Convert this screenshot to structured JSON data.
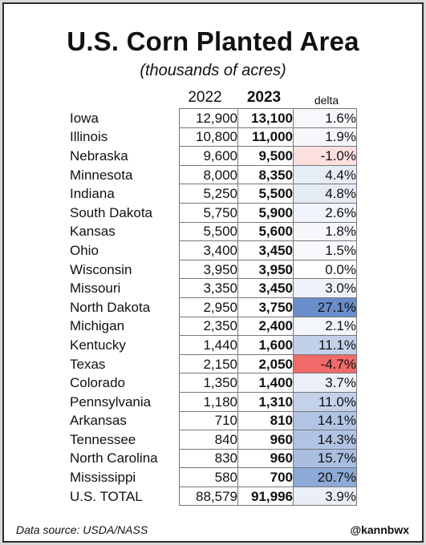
{
  "chart_data": {
    "type": "table",
    "title": "U.S. Corn Planted Area",
    "subtitle": "(thousands of acres)",
    "columns": [
      "2022",
      "2023",
      "delta"
    ],
    "rows": [
      {
        "state": "Iowa",
        "y2022": "12,900",
        "y2023": "13,100",
        "delta": "1.6%",
        "delta_value": 1.6
      },
      {
        "state": "Illinois",
        "y2022": "10,800",
        "y2023": "11,000",
        "delta": "1.9%",
        "delta_value": 1.9
      },
      {
        "state": "Nebraska",
        "y2022": "9,600",
        "y2023": "9,500",
        "delta": "-1.0%",
        "delta_value": -1.0
      },
      {
        "state": "Minnesota",
        "y2022": "8,000",
        "y2023": "8,350",
        "delta": "4.4%",
        "delta_value": 4.4
      },
      {
        "state": "Indiana",
        "y2022": "5,250",
        "y2023": "5,500",
        "delta": "4.8%",
        "delta_value": 4.8
      },
      {
        "state": "South Dakota",
        "y2022": "5,750",
        "y2023": "5,900",
        "delta": "2.6%",
        "delta_value": 2.6
      },
      {
        "state": "Kansas",
        "y2022": "5,500",
        "y2023": "5,600",
        "delta": "1.8%",
        "delta_value": 1.8
      },
      {
        "state": "Ohio",
        "y2022": "3,400",
        "y2023": "3,450",
        "delta": "1.5%",
        "delta_value": 1.5
      },
      {
        "state": "Wisconsin",
        "y2022": "3,950",
        "y2023": "3,950",
        "delta": "0.0%",
        "delta_value": 0.0
      },
      {
        "state": "Missouri",
        "y2022": "3,350",
        "y2023": "3,450",
        "delta": "3.0%",
        "delta_value": 3.0
      },
      {
        "state": "North Dakota",
        "y2022": "2,950",
        "y2023": "3,750",
        "delta": "27.1%",
        "delta_value": 27.1
      },
      {
        "state": "Michigan",
        "y2022": "2,350",
        "y2023": "2,400",
        "delta": "2.1%",
        "delta_value": 2.1
      },
      {
        "state": "Kentucky",
        "y2022": "1,440",
        "y2023": "1,600",
        "delta": "11.1%",
        "delta_value": 11.1
      },
      {
        "state": "Texas",
        "y2022": "2,150",
        "y2023": "2,050",
        "delta": "-4.7%",
        "delta_value": -4.7
      },
      {
        "state": "Colorado",
        "y2022": "1,350",
        "y2023": "1,400",
        "delta": "3.7%",
        "delta_value": 3.7
      },
      {
        "state": "Pennsylvania",
        "y2022": "1,180",
        "y2023": "1,310",
        "delta": "11.0%",
        "delta_value": 11.0
      },
      {
        "state": "Arkansas",
        "y2022": "710",
        "y2023": "810",
        "delta": "14.1%",
        "delta_value": 14.1
      },
      {
        "state": "Tennessee",
        "y2022": "840",
        "y2023": "960",
        "delta": "14.3%",
        "delta_value": 14.3
      },
      {
        "state": "North Carolina",
        "y2022": "830",
        "y2023": "960",
        "delta": "15.7%",
        "delta_value": 15.7
      },
      {
        "state": "Mississippi",
        "y2022": "580",
        "y2023": "700",
        "delta": "20.7%",
        "delta_value": 20.7
      },
      {
        "state": "U.S. TOTAL",
        "y2022": "88,579",
        "y2023": "91,996",
        "delta": "3.9%",
        "delta_value": 3.9
      }
    ],
    "colors": {
      "positive_max": "#6a8ec9",
      "negative_max": "#f06a6a",
      "neutral": "#ffffff"
    }
  },
  "footer": {
    "source": "Data source: USDA/NASS",
    "credit": "@kannbwx"
  }
}
